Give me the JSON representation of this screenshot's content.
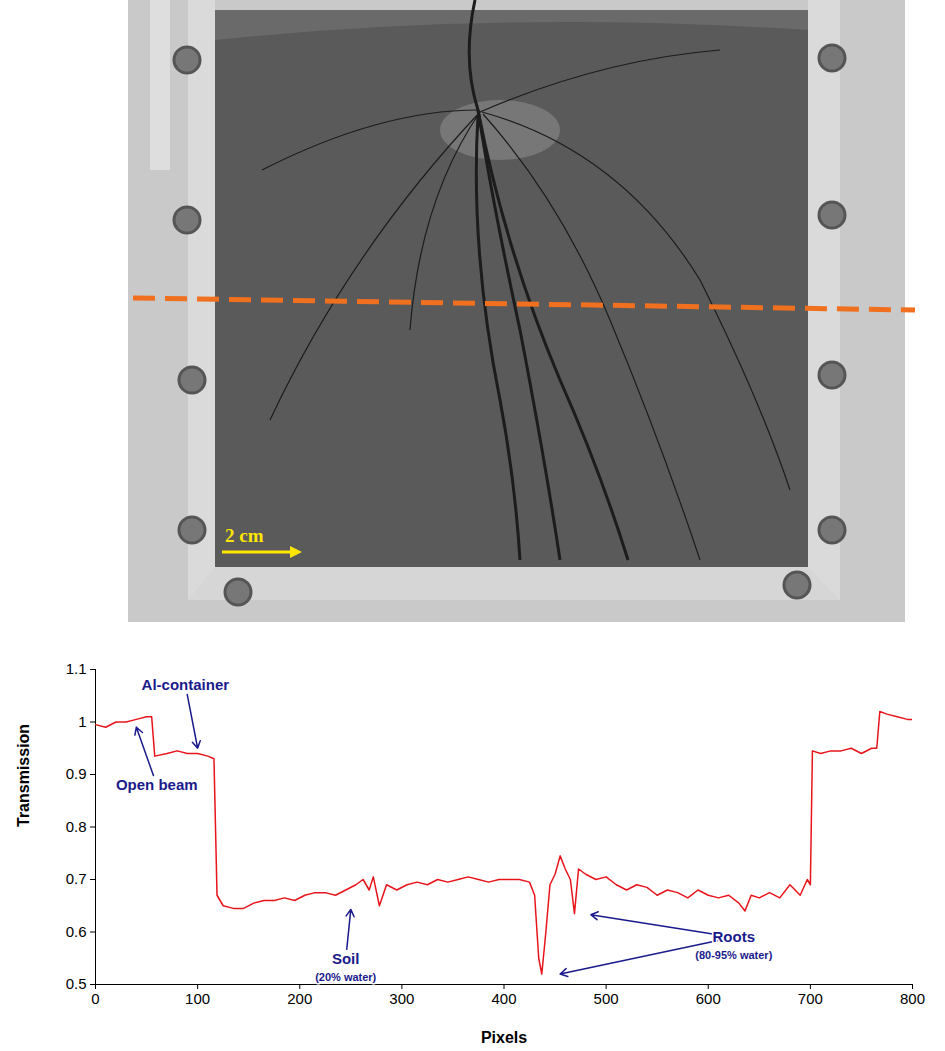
{
  "image": {
    "scale_bar_label": "2 cm"
  },
  "chart_data": {
    "type": "line",
    "xlabel": "Pixels",
    "ylabel": "Transmission",
    "color": "#e8141b",
    "xlim": [
      0,
      800
    ],
    "xticks": [
      0,
      100,
      200,
      300,
      400,
      500,
      600,
      700,
      800
    ],
    "ylim": [
      0.5,
      1.1
    ],
    "yticks": [
      0.5,
      0.6,
      0.7,
      0.8,
      0.9,
      1,
      1.1
    ],
    "x": [
      0,
      10,
      20,
      30,
      40,
      50,
      55,
      58,
      70,
      80,
      90,
      100,
      110,
      116,
      119,
      125,
      135,
      145,
      155,
      165,
      175,
      185,
      195,
      205,
      215,
      225,
      235,
      245,
      255,
      262,
      268,
      272,
      278,
      285,
      295,
      305,
      315,
      325,
      335,
      345,
      355,
      365,
      375,
      385,
      395,
      405,
      415,
      425,
      430,
      434,
      437,
      441,
      445,
      450,
      455,
      460,
      465,
      469,
      473,
      480,
      490,
      500,
      510,
      520,
      530,
      540,
      550,
      560,
      570,
      580,
      590,
      600,
      610,
      620,
      630,
      636,
      642,
      650,
      660,
      670,
      680,
      690,
      697,
      700,
      702,
      710,
      720,
      730,
      740,
      750,
      760,
      765,
      768,
      775,
      785,
      795,
      800
    ],
    "values": [
      0.995,
      0.99,
      1.0,
      1.0,
      1.005,
      1.01,
      1.01,
      0.935,
      0.94,
      0.945,
      0.94,
      0.94,
      0.935,
      0.93,
      0.67,
      0.65,
      0.645,
      0.645,
      0.655,
      0.66,
      0.66,
      0.665,
      0.66,
      0.67,
      0.675,
      0.675,
      0.67,
      0.68,
      0.69,
      0.7,
      0.68,
      0.705,
      0.65,
      0.69,
      0.68,
      0.69,
      0.695,
      0.69,
      0.7,
      0.695,
      0.7,
      0.705,
      0.7,
      0.695,
      0.7,
      0.7,
      0.7,
      0.695,
      0.67,
      0.55,
      0.52,
      0.6,
      0.69,
      0.71,
      0.745,
      0.72,
      0.7,
      0.635,
      0.72,
      0.71,
      0.7,
      0.705,
      0.69,
      0.68,
      0.69,
      0.685,
      0.67,
      0.68,
      0.675,
      0.665,
      0.68,
      0.67,
      0.665,
      0.67,
      0.655,
      0.64,
      0.67,
      0.665,
      0.675,
      0.665,
      0.69,
      0.67,
      0.7,
      0.69,
      0.945,
      0.94,
      0.945,
      0.945,
      0.95,
      0.94,
      0.95,
      0.95,
      1.02,
      1.015,
      1.01,
      1.005,
      1.005
    ],
    "annotations": [
      {
        "text": "Al-container",
        "x": 88,
        "y": 1.071,
        "arrow_to": [
          [
            100,
            0.95
          ]
        ]
      },
      {
        "text": "Open beam",
        "x": 60,
        "y": 0.88,
        "arrow_to": [
          [
            40,
            0.99
          ]
        ]
      },
      {
        "text": "Soil",
        "note": "(20% water)",
        "x": 245,
        "y": 0.548,
        "arrow_to": [
          [
            250,
            0.643
          ]
        ]
      },
      {
        "text": "Roots",
        "note": "(80-95% water)",
        "x": 625,
        "y": 0.59,
        "arrow_to": [
          [
            485,
            0.633
          ],
          [
            455,
            0.52
          ]
        ]
      }
    ]
  }
}
